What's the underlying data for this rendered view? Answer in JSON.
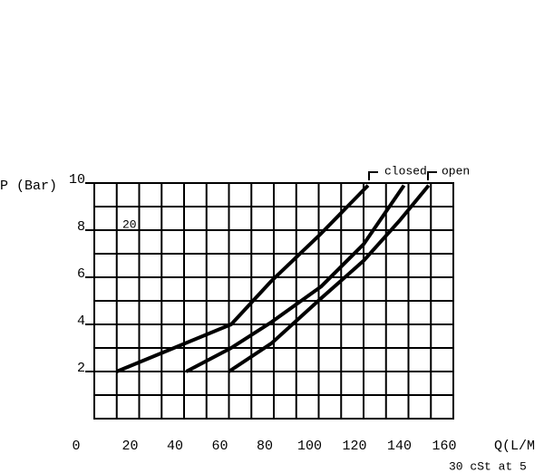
{
  "chart_data": {
    "type": "line",
    "y_label": "P (Bar)",
    "x_label": "Q(L/M",
    "note": "30 cSt at 5",
    "annotations": {
      "inner": "20",
      "closed": "closed",
      "open": "open"
    },
    "xlim": [
      0,
      160
    ],
    "xticks": [
      0,
      20,
      40,
      60,
      80,
      100,
      120,
      140,
      160
    ],
    "ylim": [
      0,
      10
    ],
    "yticks": [
      2,
      4,
      6,
      8,
      10
    ],
    "grid": true,
    "grid_step": {
      "x": 10,
      "y": 1
    },
    "series": [
      {
        "color": "#000000",
        "x": [
          10,
          61,
          79,
          101,
          122
        ],
        "values": [
          2,
          4,
          5.85,
          7.85,
          9.9
        ]
      },
      {
        "color": "#000000",
        "x": [
          41,
          61,
          79,
          101,
          120,
          138
        ],
        "values": [
          2,
          3,
          4.1,
          5.6,
          7.4,
          9.9
        ]
      },
      {
        "color": "#000000",
        "x": [
          60,
          79,
          101,
          120,
          136,
          149
        ],
        "values": [
          2,
          3.2,
          5.1,
          6.7,
          8.4,
          9.9
        ]
      }
    ]
  }
}
